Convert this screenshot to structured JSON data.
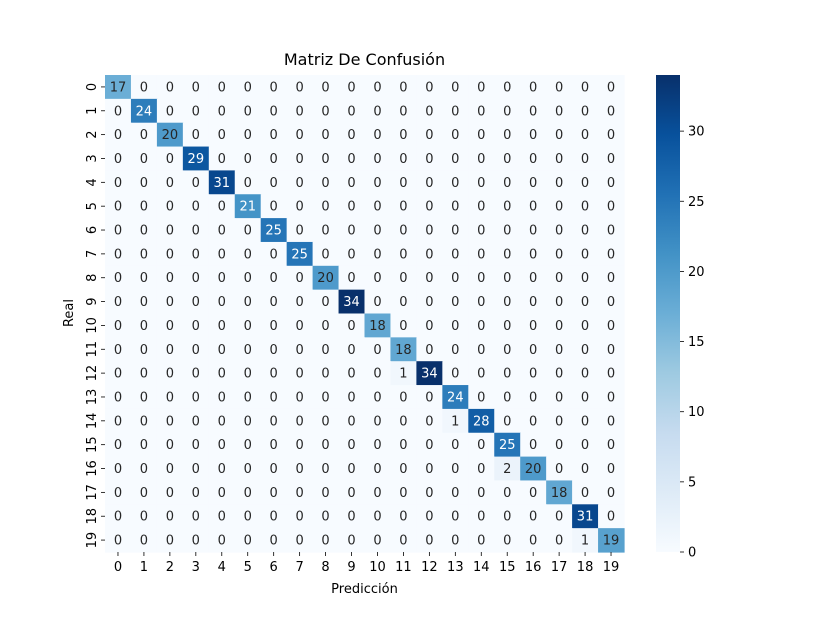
{
  "chart_data": {
    "type": "heatmap",
    "title": "Matriz De Confusión",
    "xlabel": "Predicción",
    "ylabel": "Real",
    "x_categories": [
      "0",
      "1",
      "2",
      "3",
      "4",
      "5",
      "6",
      "7",
      "8",
      "9",
      "10",
      "11",
      "12",
      "13",
      "14",
      "15",
      "16",
      "17",
      "18",
      "19"
    ],
    "y_categories": [
      "0",
      "1",
      "2",
      "3",
      "4",
      "5",
      "6",
      "7",
      "8",
      "9",
      "10",
      "11",
      "12",
      "13",
      "14",
      "15",
      "16",
      "17",
      "18",
      "19"
    ],
    "values": [
      [
        17,
        0,
        0,
        0,
        0,
        0,
        0,
        0,
        0,
        0,
        0,
        0,
        0,
        0,
        0,
        0,
        0,
        0,
        0,
        0
      ],
      [
        0,
        24,
        0,
        0,
        0,
        0,
        0,
        0,
        0,
        0,
        0,
        0,
        0,
        0,
        0,
        0,
        0,
        0,
        0,
        0
      ],
      [
        0,
        0,
        20,
        0,
        0,
        0,
        0,
        0,
        0,
        0,
        0,
        0,
        0,
        0,
        0,
        0,
        0,
        0,
        0,
        0
      ],
      [
        0,
        0,
        0,
        29,
        0,
        0,
        0,
        0,
        0,
        0,
        0,
        0,
        0,
        0,
        0,
        0,
        0,
        0,
        0,
        0
      ],
      [
        0,
        0,
        0,
        0,
        31,
        0,
        0,
        0,
        0,
        0,
        0,
        0,
        0,
        0,
        0,
        0,
        0,
        0,
        0,
        0
      ],
      [
        0,
        0,
        0,
        0,
        0,
        21,
        0,
        0,
        0,
        0,
        0,
        0,
        0,
        0,
        0,
        0,
        0,
        0,
        0,
        0
      ],
      [
        0,
        0,
        0,
        0,
        0,
        0,
        25,
        0,
        0,
        0,
        0,
        0,
        0,
        0,
        0,
        0,
        0,
        0,
        0,
        0
      ],
      [
        0,
        0,
        0,
        0,
        0,
        0,
        0,
        25,
        0,
        0,
        0,
        0,
        0,
        0,
        0,
        0,
        0,
        0,
        0,
        0
      ],
      [
        0,
        0,
        0,
        0,
        0,
        0,
        0,
        0,
        20,
        0,
        0,
        0,
        0,
        0,
        0,
        0,
        0,
        0,
        0,
        0
      ],
      [
        0,
        0,
        0,
        0,
        0,
        0,
        0,
        0,
        0,
        34,
        0,
        0,
        0,
        0,
        0,
        0,
        0,
        0,
        0,
        0
      ],
      [
        0,
        0,
        0,
        0,
        0,
        0,
        0,
        0,
        0,
        0,
        18,
        0,
        0,
        0,
        0,
        0,
        0,
        0,
        0,
        0
      ],
      [
        0,
        0,
        0,
        0,
        0,
        0,
        0,
        0,
        0,
        0,
        0,
        18,
        0,
        0,
        0,
        0,
        0,
        0,
        0,
        0
      ],
      [
        0,
        0,
        0,
        0,
        0,
        0,
        0,
        0,
        0,
        0,
        0,
        1,
        34,
        0,
        0,
        0,
        0,
        0,
        0,
        0
      ],
      [
        0,
        0,
        0,
        0,
        0,
        0,
        0,
        0,
        0,
        0,
        0,
        0,
        0,
        24,
        0,
        0,
        0,
        0,
        0,
        0
      ],
      [
        0,
        0,
        0,
        0,
        0,
        0,
        0,
        0,
        0,
        0,
        0,
        0,
        0,
        1,
        28,
        0,
        0,
        0,
        0,
        0
      ],
      [
        0,
        0,
        0,
        0,
        0,
        0,
        0,
        0,
        0,
        0,
        0,
        0,
        0,
        0,
        0,
        25,
        0,
        0,
        0,
        0
      ],
      [
        0,
        0,
        0,
        0,
        0,
        0,
        0,
        0,
        0,
        0,
        0,
        0,
        0,
        0,
        0,
        2,
        20,
        0,
        0,
        0
      ],
      [
        0,
        0,
        0,
        0,
        0,
        0,
        0,
        0,
        0,
        0,
        0,
        0,
        0,
        0,
        0,
        0,
        0,
        18,
        0,
        0
      ],
      [
        0,
        0,
        0,
        0,
        0,
        0,
        0,
        0,
        0,
        0,
        0,
        0,
        0,
        0,
        0,
        0,
        0,
        0,
        31,
        0
      ],
      [
        0,
        0,
        0,
        0,
        0,
        0,
        0,
        0,
        0,
        0,
        0,
        0,
        0,
        0,
        0,
        0,
        0,
        0,
        1,
        19
      ]
    ],
    "colormap": "Blues",
    "colormap_stops": [
      "#f7fbff",
      "#deebf7",
      "#c6dbef",
      "#9ecae1",
      "#6baed6",
      "#4292c6",
      "#2171b5",
      "#08519c",
      "#08306b"
    ],
    "annotation_color_light": "#ffffff",
    "annotation_color_dark": "#262626",
    "vmin": 0,
    "vmax": 34,
    "colorbar_ticks": [
      0,
      5,
      10,
      15,
      20,
      25,
      30
    ],
    "colorbar_tick_labels": [
      "0",
      "5",
      "10",
      "15",
      "20",
      "25",
      "30"
    ]
  }
}
